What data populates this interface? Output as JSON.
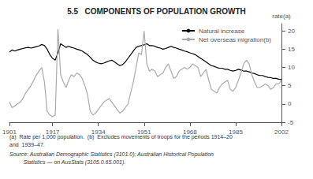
{
  "chart_data": {
    "type": "line",
    "title": "5.5   COMPONENTS OF POPULATION GROWTH",
    "ylabel": "rate(a)",
    "annotations": [
      "(a)  Rate per 1,000 population.  (b)  Excludes movements of troops for the periods 1914–20",
      "and  1939–47.",
      "Source: Australian Demographic Statistics (3101.0); Australian Historical Population",
      "         Statistics — on AusStats (3105.0.65.001)."
    ],
    "x": [
      1901,
      1902,
      1903,
      1904,
      1905,
      1906,
      1907,
      1908,
      1909,
      1910,
      1911,
      1912,
      1913,
      1914,
      1915,
      1916,
      1917,
      1918,
      1919,
      1920,
      1921,
      1922,
      1923,
      1924,
      1925,
      1926,
      1927,
      1928,
      1929,
      1930,
      1931,
      1932,
      1933,
      1934,
      1935,
      1936,
      1937,
      1938,
      1939,
      1940,
      1941,
      1942,
      1943,
      1944,
      1945,
      1946,
      1947,
      1948,
      1949,
      1950,
      1951,
      1952,
      1953,
      1954,
      1955,
      1956,
      1957,
      1958,
      1959,
      1960,
      1961,
      1962,
      1963,
      1964,
      1965,
      1966,
      1967,
      1968,
      1969,
      1970,
      1971,
      1972,
      1973,
      1974,
      1975,
      1976,
      1977,
      1978,
      1979,
      1980,
      1981,
      1982,
      1983,
      1984,
      1985,
      1986,
      1987,
      1988,
      1989,
      1990,
      1991,
      1992,
      1993,
      1994,
      1995,
      1996,
      1997,
      1998,
      1999,
      2000,
      2001,
      2002
    ],
    "series": [
      {
        "name": "Natural increase",
        "color": "#000000",
        "values": [
          14.2,
          14.8,
          14.5,
          14.8,
          15.0,
          15.2,
          15.4,
          15.5,
          15.3,
          15.5,
          15.7,
          15.9,
          16.3,
          16.0,
          15.0,
          13.5,
          12.5,
          12.0,
          14.0,
          16.5,
          16.0,
          15.5,
          15.8,
          15.5,
          15.3,
          15.0,
          14.8,
          14.5,
          14.0,
          13.5,
          12.8,
          12.0,
          11.5,
          11.2,
          11.0,
          11.2,
          11.5,
          11.8,
          12.0,
          11.5,
          11.0,
          10.5,
          10.8,
          11.5,
          12.5,
          13.5,
          14.5,
          15.5,
          15.8,
          16.0,
          16.2,
          16.5,
          16.0,
          16.0,
          15.8,
          15.5,
          15.3,
          15.0,
          15.2,
          15.5,
          15.8,
          15.5,
          15.3,
          15.0,
          14.8,
          14.5,
          14.3,
          14.0,
          13.8,
          13.5,
          13.0,
          12.5,
          12.0,
          11.5,
          11.0,
          10.5,
          10.3,
          10.0,
          9.8,
          9.8,
          9.5,
          9.5,
          9.2,
          9.0,
          9.2,
          9.5,
          9.3,
          9.0,
          9.0,
          8.8,
          8.5,
          8.3,
          8.0,
          7.8,
          7.8,
          7.5,
          7.3,
          7.2,
          7.0,
          7.0,
          6.8,
          6.7
        ]
      },
      {
        "name": "Net overseas migration(b)",
        "color": "#aaaaaa",
        "values": [
          0.5,
          -1.0,
          -0.5,
          0.0,
          0.5,
          1.5,
          3.0,
          4.0,
          5.0,
          6.5,
          8.0,
          9.0,
          10.0,
          6.0,
          -2.0,
          -3.0,
          -3.5,
          -3.0,
          20.5,
          8.0,
          6.0,
          4.5,
          6.5,
          8.0,
          7.5,
          8.5,
          8.0,
          7.0,
          5.0,
          2.5,
          -2.0,
          -3.0,
          -2.5,
          -1.5,
          -0.5,
          0.5,
          1.0,
          1.5,
          0.5,
          -0.5,
          -1.5,
          -2.5,
          -2.0,
          -1.0,
          0.0,
          3.0,
          6.0,
          10.0,
          14.0,
          13.5,
          20.0,
          11.0,
          9.0,
          9.5,
          9.0,
          7.5,
          8.0,
          8.5,
          10.0,
          11.0,
          9.0,
          7.0,
          7.5,
          9.0,
          9.5,
          10.0,
          9.5,
          10.0,
          11.0,
          10.5,
          10.0,
          7.5,
          8.5,
          9.5,
          6.5,
          4.0,
          3.5,
          3.0,
          4.5,
          5.5,
          6.0,
          6.5,
          4.0,
          3.5,
          4.5,
          6.5,
          8.5,
          11.0,
          12.0,
          11.0,
          8.0,
          6.0,
          4.5,
          4.5,
          5.0,
          5.5,
          5.0,
          4.0,
          4.5,
          5.5,
          5.5,
          6.5
        ]
      }
    ],
    "xlim": [
      1901,
      2002
    ],
    "xticks": [
      1901,
      1917,
      1934,
      1951,
      1968,
      1985,
      2002
    ],
    "ylim": [
      -5,
      22
    ],
    "yticks": [
      -5,
      0,
      5,
      10,
      15,
      20
    ],
    "legend": "upper right",
    "grid": false
  }
}
